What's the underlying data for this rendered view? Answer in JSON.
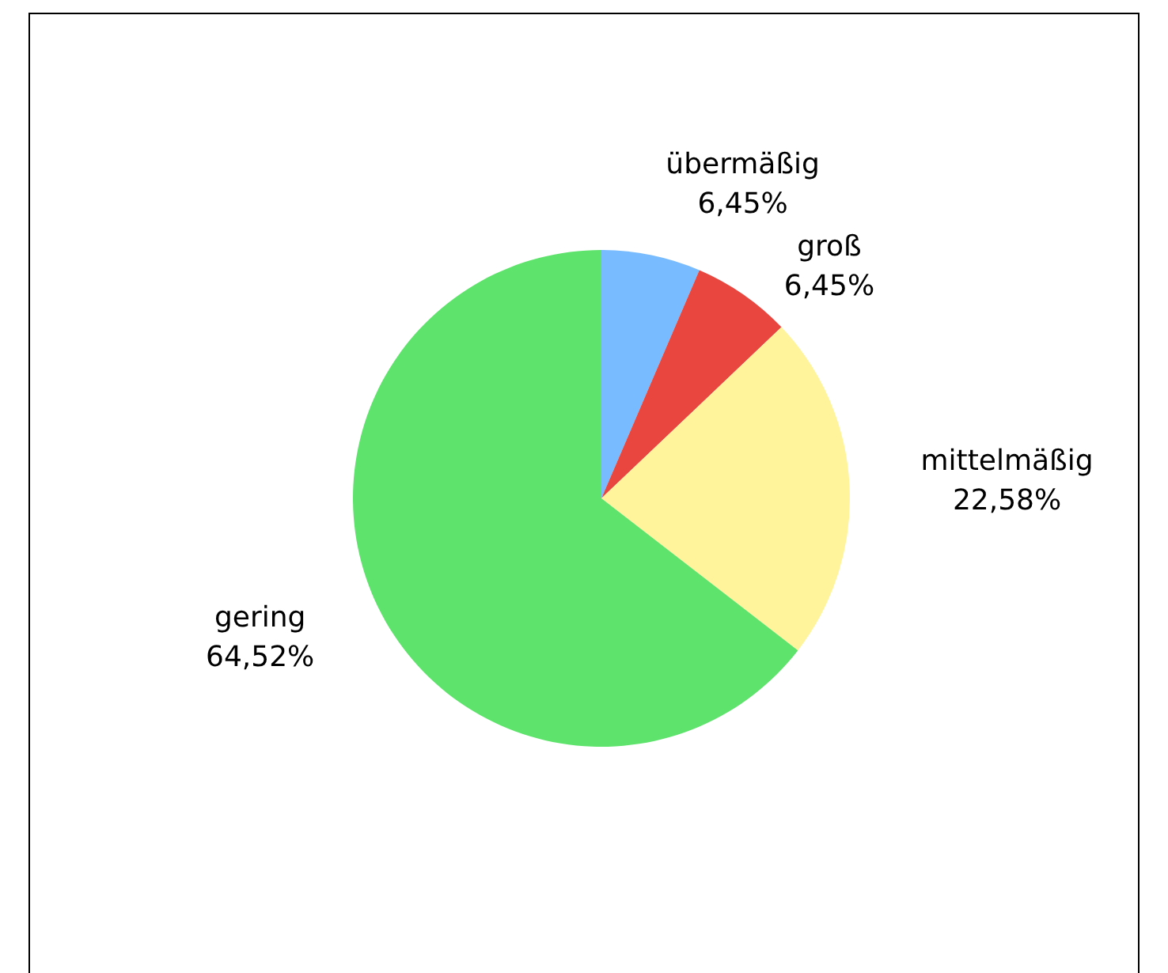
{
  "chart_data": {
    "type": "pie",
    "categories": [
      "übermäßig",
      "groß",
      "mittelmäßig",
      "gering"
    ],
    "values": [
      6.45,
      6.45,
      22.58,
      64.52
    ],
    "value_labels": [
      "6,45%",
      "6,45%",
      "22,58%",
      "64,52%"
    ],
    "colors": [
      "#78bbff",
      "#e8463f",
      "#fff49c",
      "#5ee36c"
    ],
    "legend": false
  }
}
